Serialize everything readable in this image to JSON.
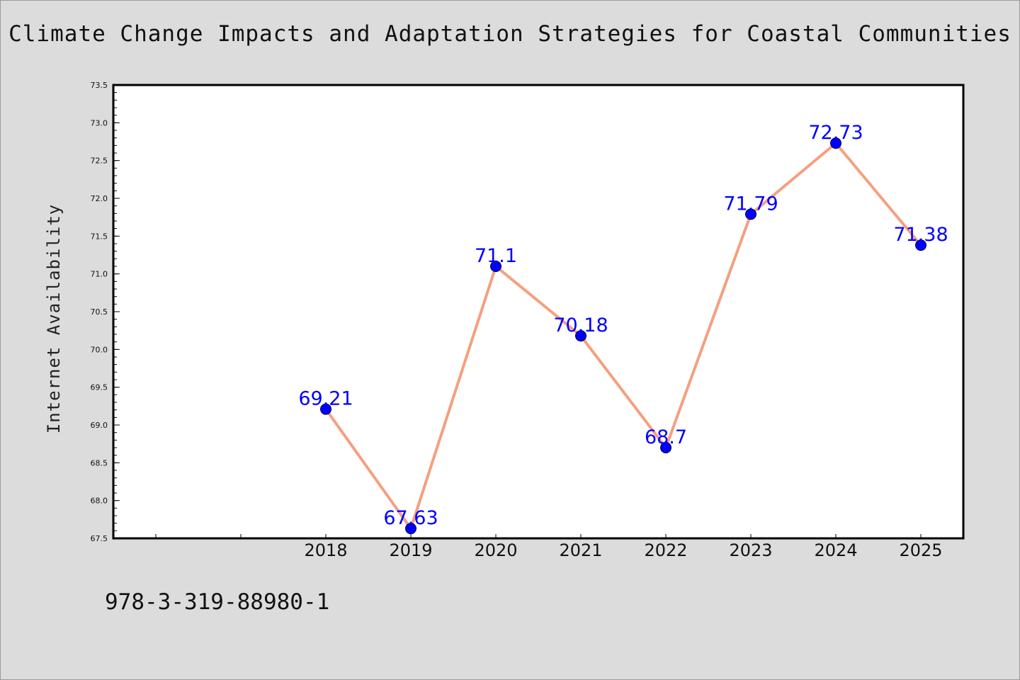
{
  "page": {
    "background": "#dcdcdc",
    "footer_text": "978-3-319-88980-1"
  },
  "chart_data": {
    "type": "line",
    "title": "Climate Change Impacts and Adaptation Strategies for Coastal Communities",
    "xlabel": "",
    "ylabel": "Internet Availability",
    "categories": [
      "2018",
      "2019",
      "2020",
      "2021",
      "2022",
      "2023",
      "2024",
      "2025"
    ],
    "series": [
      {
        "values": [
          69.21,
          67.63,
          71.1,
          70.18,
          68.7,
          71.79,
          72.73,
          71.38
        ],
        "data_labels": [
          "69.21",
          "67.63",
          "71.1",
          "70.18",
          "68.7",
          "71.79",
          "72.73",
          "71.38"
        ],
        "line_color": "#f4a07f",
        "marker_color": "#0000ff"
      }
    ],
    "xlim": [
      2015.5,
      2025.5
    ],
    "ylim": [
      67.5,
      73.5
    ],
    "y_ticks": [
      "67.5",
      "68.0",
      "68.5",
      "69.0",
      "69.5",
      "70.0",
      "70.5",
      "71.0",
      "71.5",
      "72.0",
      "72.5",
      "73.0",
      "73.5"
    ],
    "grid": false,
    "legend": "none",
    "plot_background": "#ffffff",
    "label_color": "#0000ff"
  }
}
